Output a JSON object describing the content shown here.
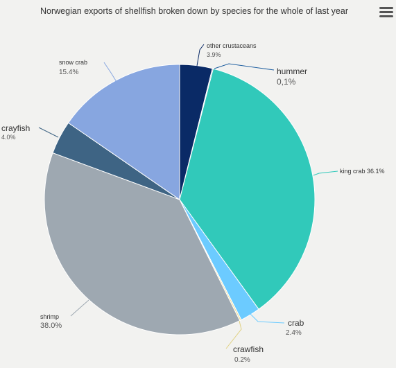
{
  "chart_data": {
    "type": "pie",
    "title": "Norwegian exports of shellfish broken down by species for the whole of last year",
    "slices": [
      {
        "name": "other crustaceans",
        "value": 3.9,
        "label": "3.9%",
        "color": "#0a2a66"
      },
      {
        "name": "hummer",
        "value": 0.1,
        "label": "0,1%",
        "color": "#0a2a66"
      },
      {
        "name": "king crab 36.1%",
        "value": 36.1,
        "label": "",
        "color": "#31c9ba"
      },
      {
        "name": "crab",
        "value": 2.4,
        "label": "2.4%",
        "color": "#6ccbff"
      },
      {
        "name": "crawfish",
        "value": 0.2,
        "label": "0.2%",
        "color": "#f0e0a0"
      },
      {
        "name": "shrimp",
        "value": 38.0,
        "label": "38.0%",
        "color": "#9ea8b1"
      },
      {
        "name": "crayfish",
        "value": 4.0,
        "label": "4.0%",
        "color": "#3e6484"
      },
      {
        "name": "snow crab",
        "value": 15.4,
        "label": "15.4%",
        "color": "#87a6e0"
      }
    ]
  },
  "menu_icon": "hamburger-menu-icon"
}
